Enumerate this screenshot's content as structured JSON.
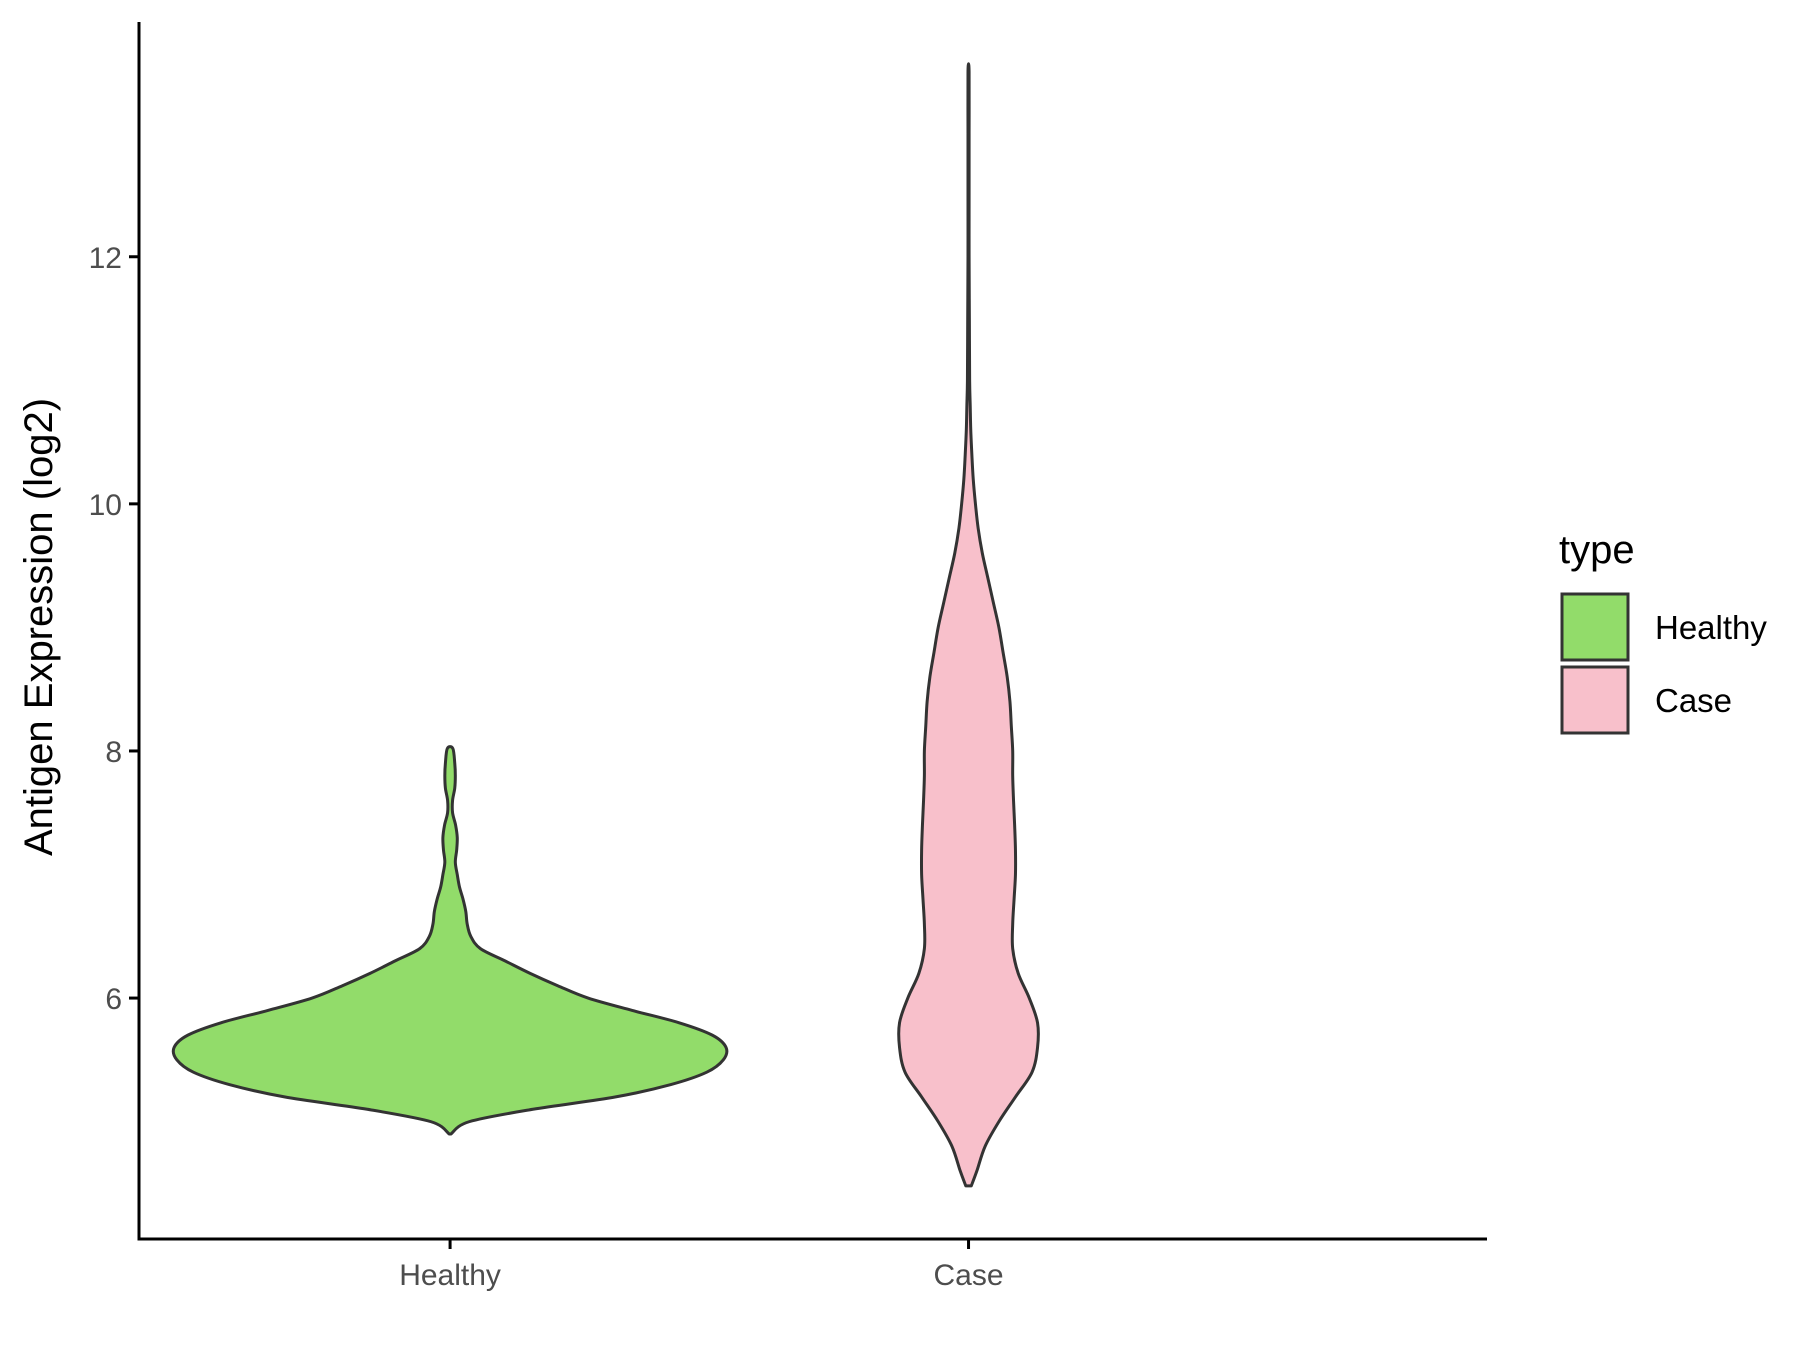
{
  "chart_data": {
    "type": "violin",
    "title": "",
    "xlabel": "",
    "ylabel": "Antigen Expression (log2)",
    "ylim": [
      4.05,
      13.9
    ],
    "yticks": [
      6,
      8,
      10,
      12
    ],
    "categories": [
      "Healthy",
      "Case"
    ],
    "grid": false,
    "legend": {
      "title": "type",
      "placement": "right",
      "entries": [
        {
          "label": "Healthy",
          "color": "#92dc6a"
        },
        {
          "label": "Case",
          "color": "#f8c0cb"
        }
      ]
    },
    "series": [
      {
        "name": "Healthy",
        "color": "#92dc6a",
        "min": 4.9,
        "max": 8.02,
        "density": [
          [
            4.9,
            0.003
          ],
          [
            5.0,
            0.07
          ],
          [
            5.1,
            0.3
          ],
          [
            5.2,
            0.6
          ],
          [
            5.3,
            0.8
          ],
          [
            5.4,
            0.93
          ],
          [
            5.5,
            0.99
          ],
          [
            5.6,
            1.0
          ],
          [
            5.7,
            0.95
          ],
          [
            5.8,
            0.83
          ],
          [
            5.9,
            0.66
          ],
          [
            6.0,
            0.5
          ],
          [
            6.1,
            0.39
          ],
          [
            6.2,
            0.29
          ],
          [
            6.3,
            0.2
          ],
          [
            6.4,
            0.11
          ],
          [
            6.5,
            0.075
          ],
          [
            6.6,
            0.062
          ],
          [
            6.7,
            0.057
          ],
          [
            6.8,
            0.047
          ],
          [
            6.9,
            0.034
          ],
          [
            7.0,
            0.026
          ],
          [
            7.1,
            0.019
          ],
          [
            7.2,
            0.024
          ],
          [
            7.3,
            0.026
          ],
          [
            7.4,
            0.02
          ],
          [
            7.5,
            0.009
          ],
          [
            7.6,
            0.009
          ],
          [
            7.7,
            0.017
          ],
          [
            7.8,
            0.019
          ],
          [
            7.9,
            0.017
          ],
          [
            8.02,
            0.01
          ]
        ]
      },
      {
        "name": "Case",
        "color": "#f8c0cb",
        "min": 4.48,
        "max": 13.5,
        "density": [
          [
            4.48,
            0.01
          ],
          [
            4.6,
            0.03
          ],
          [
            4.8,
            0.06
          ],
          [
            5.0,
            0.11
          ],
          [
            5.2,
            0.17
          ],
          [
            5.4,
            0.23
          ],
          [
            5.6,
            0.25
          ],
          [
            5.8,
            0.25
          ],
          [
            6.0,
            0.22
          ],
          [
            6.2,
            0.18
          ],
          [
            6.4,
            0.16
          ],
          [
            6.6,
            0.16
          ],
          [
            6.8,
            0.165
          ],
          [
            7.0,
            0.17
          ],
          [
            7.2,
            0.17
          ],
          [
            7.4,
            0.167
          ],
          [
            7.6,
            0.163
          ],
          [
            7.8,
            0.16
          ],
          [
            8.0,
            0.16
          ],
          [
            8.2,
            0.155
          ],
          [
            8.4,
            0.15
          ],
          [
            8.6,
            0.14
          ],
          [
            8.8,
            0.125
          ],
          [
            9.0,
            0.11
          ],
          [
            9.2,
            0.09
          ],
          [
            9.4,
            0.07
          ],
          [
            9.6,
            0.05
          ],
          [
            9.8,
            0.035
          ],
          [
            10.0,
            0.025
          ],
          [
            10.2,
            0.017
          ],
          [
            10.4,
            0.012
          ],
          [
            10.6,
            0.008
          ],
          [
            10.8,
            0.006
          ],
          [
            11.0,
            0.004
          ],
          [
            11.5,
            0.003
          ],
          [
            12.0,
            0.002
          ],
          [
            12.5,
            0.002
          ],
          [
            13.0,
            0.002
          ],
          [
            13.5,
            0.002
          ]
        ]
      }
    ]
  }
}
